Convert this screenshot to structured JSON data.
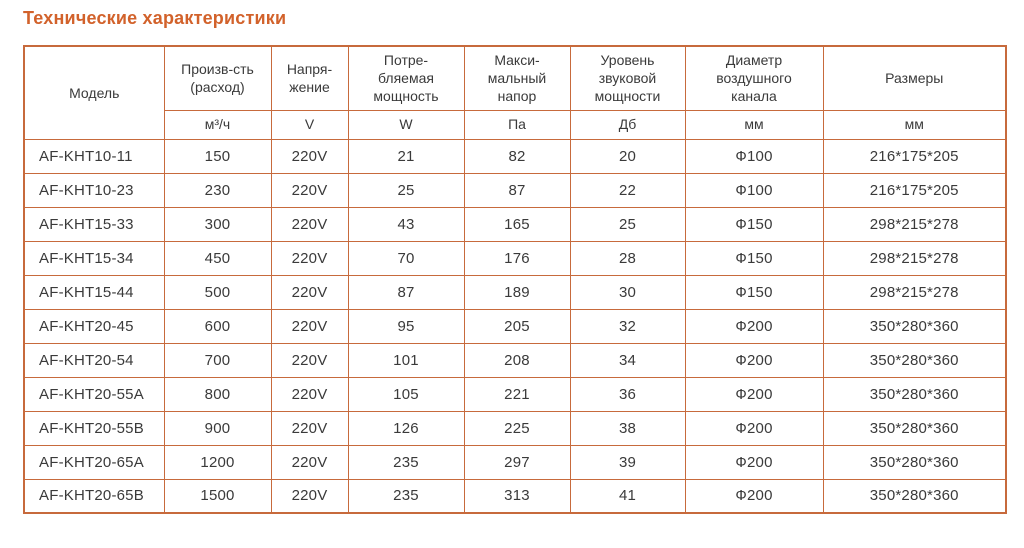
{
  "page": {
    "title": "Технические характеристики"
  },
  "colors": {
    "accent": "#d2622b",
    "table_border": "#c76a3c",
    "text": "#3a3a3a"
  },
  "table": {
    "columns": [
      {
        "label": "Модель",
        "unit": ""
      },
      {
        "label": "Произв-сть\n(расход)",
        "unit": "м³/ч"
      },
      {
        "label": "Напря-\nжение",
        "unit": "V"
      },
      {
        "label": "Потре-\nбляемая\nмощность",
        "unit": "W"
      },
      {
        "label": "Макси-\nмальный\nнапор",
        "unit": "Па"
      },
      {
        "label": "Уровень\nзвуковой\nмощности",
        "unit": "Дб"
      },
      {
        "label": "Диаметр\nвоздушного\nканала",
        "unit": "мм"
      },
      {
        "label": "Размеры",
        "unit": "мм"
      }
    ],
    "rows": [
      [
        "AF-KHT10-11",
        "150",
        "220V",
        "21",
        "82",
        "20",
        "Ф100",
        "216*175*205"
      ],
      [
        "AF-KHT10-23",
        "230",
        "220V",
        "25",
        "87",
        "22",
        "Ф100",
        "216*175*205"
      ],
      [
        "AF-KHT15-33",
        "300",
        "220V",
        "43",
        "165",
        "25",
        "Ф150",
        "298*215*278"
      ],
      [
        "AF-KHT15-34",
        "450",
        "220V",
        "70",
        "176",
        "28",
        "Ф150",
        "298*215*278"
      ],
      [
        "AF-KHT15-44",
        "500",
        "220V",
        "87",
        "189",
        "30",
        "Ф150",
        "298*215*278"
      ],
      [
        "AF-KHT20-45",
        "600",
        "220V",
        "95",
        "205",
        "32",
        "Ф200",
        "350*280*360"
      ],
      [
        "AF-KHT20-54",
        "700",
        "220V",
        "101",
        "208",
        "34",
        "Ф200",
        "350*280*360"
      ],
      [
        "AF-KHT20-55A",
        "800",
        "220V",
        "105",
        "221",
        "36",
        "Ф200",
        "350*280*360"
      ],
      [
        "AF-KHT20-55B",
        "900",
        "220V",
        "126",
        "225",
        "38",
        "Ф200",
        "350*280*360"
      ],
      [
        "AF-KHT20-65A",
        "1200",
        "220V",
        "235",
        "297",
        "39",
        "Ф200",
        "350*280*360"
      ],
      [
        "AF-KHT20-65B",
        "1500",
        "220V",
        "235",
        "313",
        "41",
        "Ф200",
        "350*280*360"
      ]
    ]
  }
}
